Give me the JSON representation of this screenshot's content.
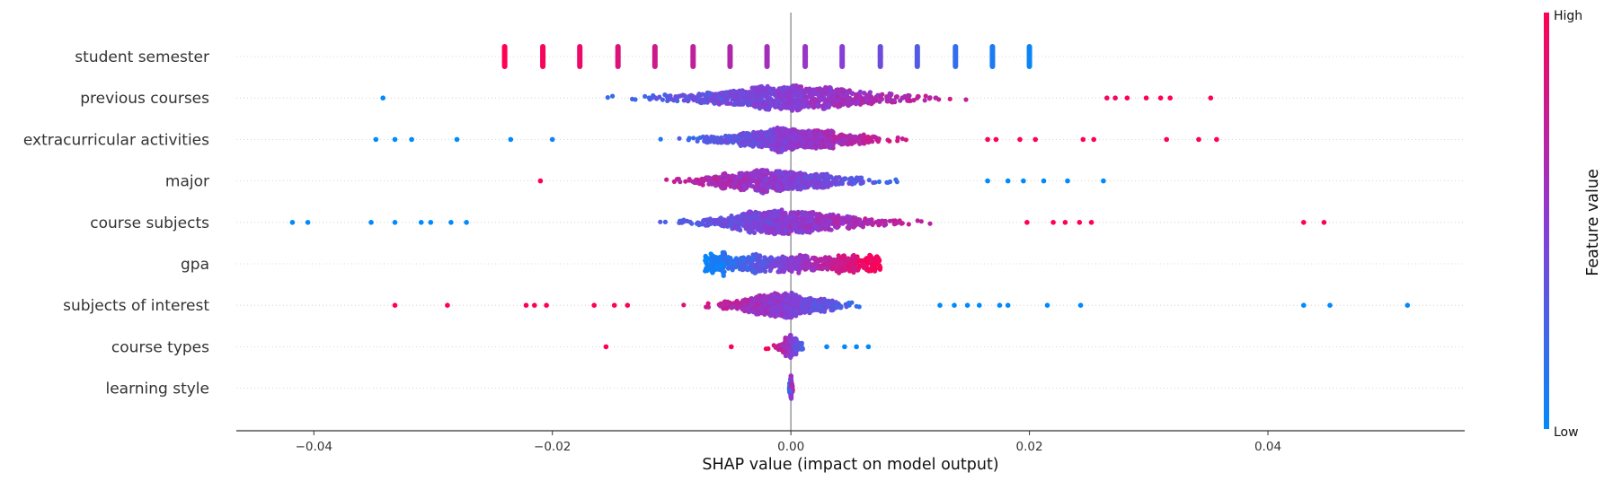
{
  "chart_data": {
    "type": "scatter",
    "subtype": "shap-beeswarm",
    "xlabel": "SHAP value (impact on model output)",
    "xlim": [
      -0.0465,
      0.0565
    ],
    "xticks": [
      -0.04,
      -0.02,
      0.0,
      0.02,
      0.04
    ],
    "xtick_labels": [
      "−0.04",
      "−0.02",
      "0.00",
      "0.02",
      "0.04"
    ],
    "zero_line": true,
    "row_gridlines": "dotted",
    "colorbar": {
      "label": "Feature value",
      "high_label": "High",
      "low_label": "Low",
      "low_color": "#008afb",
      "mid_color": "#8b3bd4",
      "high_color": "#ff0052",
      "position": "right"
    },
    "features": [
      {
        "name": "student semester",
        "discrete": true,
        "points": [
          {
            "x": -0.024,
            "v": 1.0
          },
          {
            "x": -0.0208,
            "v": 0.96
          },
          {
            "x": -0.0177,
            "v": 0.92
          },
          {
            "x": -0.0145,
            "v": 0.85
          },
          {
            "x": -0.0114,
            "v": 0.78
          },
          {
            "x": -0.0082,
            "v": 0.72
          },
          {
            "x": -0.0051,
            "v": 0.66
          },
          {
            "x": -0.002,
            "v": 0.6
          },
          {
            "x": 0.0012,
            "v": 0.55
          },
          {
            "x": 0.0043,
            "v": 0.48
          },
          {
            "x": 0.0075,
            "v": 0.4
          },
          {
            "x": 0.0106,
            "v": 0.3
          },
          {
            "x": 0.0138,
            "v": 0.18
          },
          {
            "x": 0.0169,
            "v": 0.1
          },
          {
            "x": 0.02,
            "v": 0.04
          }
        ]
      },
      {
        "name": "previous courses",
        "range": [
          -0.0265,
          0.0265
        ],
        "center": 0.0,
        "spread": 0.0085,
        "count": 900,
        "direction": 1,
        "outliers": [
          {
            "x": -0.0342,
            "v": 0.0
          },
          {
            "x": 0.0265,
            "v": 0.95
          },
          {
            "x": 0.0272,
            "v": 0.95
          },
          {
            "x": 0.0282,
            "v": 1.0
          },
          {
            "x": 0.0298,
            "v": 1.0
          },
          {
            "x": 0.031,
            "v": 1.0
          },
          {
            "x": 0.0318,
            "v": 1.0
          },
          {
            "x": 0.0352,
            "v": 1.0
          }
        ]
      },
      {
        "name": "extracurricular activities",
        "range": [
          -0.0185,
          0.013
        ],
        "center": 0.0,
        "spread": 0.0055,
        "count": 900,
        "direction": 1,
        "outliers": [
          {
            "x": -0.0348,
            "v": 0.0
          },
          {
            "x": -0.0332,
            "v": 0.0
          },
          {
            "x": -0.0318,
            "v": 0.0
          },
          {
            "x": -0.028,
            "v": 0.0
          },
          {
            "x": -0.0235,
            "v": 0.0
          },
          {
            "x": -0.02,
            "v": 0.05
          },
          {
            "x": 0.0165,
            "v": 1.0
          },
          {
            "x": 0.0172,
            "v": 1.0
          },
          {
            "x": 0.0192,
            "v": 1.0
          },
          {
            "x": 0.0205,
            "v": 1.0
          },
          {
            "x": 0.0245,
            "v": 1.0
          },
          {
            "x": 0.0254,
            "v": 1.0
          },
          {
            "x": 0.0315,
            "v": 1.0
          },
          {
            "x": 0.0342,
            "v": 1.0
          },
          {
            "x": 0.0357,
            "v": 1.0
          }
        ]
      },
      {
        "name": "major",
        "range": [
          -0.0195,
          0.0155
        ],
        "center": -0.0012,
        "spread": 0.006,
        "count": 700,
        "direction": -1,
        "outliers": [
          {
            "x": -0.021,
            "v": 1.0
          },
          {
            "x": 0.0165,
            "v": 0.0
          },
          {
            "x": 0.0182,
            "v": 0.0
          },
          {
            "x": 0.0195,
            "v": 0.0
          },
          {
            "x": 0.0212,
            "v": 0.0
          },
          {
            "x": 0.0232,
            "v": 0.0
          },
          {
            "x": 0.0262,
            "v": 0.0
          }
        ]
      },
      {
        "name": "course subjects",
        "range": [
          -0.023,
          0.0185
        ],
        "center": -0.0002,
        "spread": 0.0065,
        "count": 800,
        "direction": 1,
        "outliers": [
          {
            "x": -0.0418,
            "v": 0.0
          },
          {
            "x": -0.0405,
            "v": 0.0
          },
          {
            "x": -0.0352,
            "v": 0.0
          },
          {
            "x": -0.0332,
            "v": 0.0
          },
          {
            "x": -0.031,
            "v": 0.0
          },
          {
            "x": -0.0302,
            "v": 0.0
          },
          {
            "x": -0.0285,
            "v": 0.0
          },
          {
            "x": -0.0272,
            "v": 0.0
          },
          {
            "x": 0.0198,
            "v": 1.0
          },
          {
            "x": 0.022,
            "v": 1.0
          },
          {
            "x": 0.023,
            "v": 1.0
          },
          {
            "x": 0.0242,
            "v": 1.0
          },
          {
            "x": 0.0252,
            "v": 1.0
          },
          {
            "x": 0.043,
            "v": 1.0
          },
          {
            "x": 0.0447,
            "v": 1.0
          }
        ]
      },
      {
        "name": "gpa",
        "range": [
          -0.0072,
          0.0075
        ],
        "center": 0.0,
        "spread": 0.0045,
        "count": 650,
        "direction": 1,
        "uniform": true,
        "outliers": []
      },
      {
        "name": "subjects of interest",
        "range": [
          -0.0125,
          0.0105
        ],
        "center": -0.0008,
        "spread": 0.004,
        "count": 700,
        "direction": -1,
        "outliers": [
          {
            "x": -0.0332,
            "v": 1.0
          },
          {
            "x": -0.0288,
            "v": 1.0
          },
          {
            "x": -0.0222,
            "v": 1.0
          },
          {
            "x": -0.0215,
            "v": 1.0
          },
          {
            "x": -0.0205,
            "v": 1.0
          },
          {
            "x": -0.0165,
            "v": 1.0
          },
          {
            "x": -0.0148,
            "v": 1.0
          },
          {
            "x": -0.0137,
            "v": 1.0
          },
          {
            "x": 0.0125,
            "v": 0.0
          },
          {
            "x": 0.0137,
            "v": 0.0
          },
          {
            "x": 0.0148,
            "v": 0.0
          },
          {
            "x": 0.0158,
            "v": 0.0
          },
          {
            "x": 0.0175,
            "v": 0.0
          },
          {
            "x": 0.0182,
            "v": 0.0
          },
          {
            "x": 0.0215,
            "v": 0.0
          },
          {
            "x": 0.0243,
            "v": 0.0
          },
          {
            "x": 0.043,
            "v": 0.0
          },
          {
            "x": 0.0452,
            "v": 0.0
          },
          {
            "x": 0.0517,
            "v": 0.0
          }
        ]
      },
      {
        "name": "course types",
        "range": [
          -0.003,
          0.001
        ],
        "center": 0.0,
        "spread": 0.0008,
        "count": 300,
        "direction": -1,
        "outliers": [
          {
            "x": -0.0155,
            "v": 1.0
          },
          {
            "x": -0.005,
            "v": 1.0
          },
          {
            "x": 0.003,
            "v": 0.0
          },
          {
            "x": 0.0045,
            "v": 0.0
          },
          {
            "x": 0.0055,
            "v": 0.0
          },
          {
            "x": 0.0065,
            "v": 0.0
          }
        ]
      },
      {
        "name": "learning style",
        "range": [
          -0.0002,
          0.0002
        ],
        "center": 0.0,
        "spread": 0.0001,
        "count": 200,
        "direction": 1,
        "outliers": []
      }
    ]
  }
}
